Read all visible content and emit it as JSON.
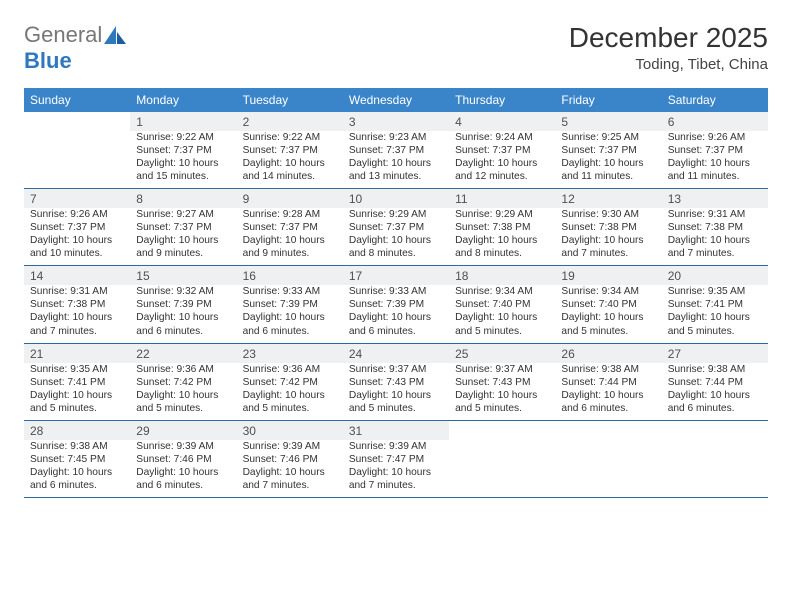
{
  "brand": {
    "name_a": "General",
    "name_b": "Blue",
    "gray": "#777777",
    "blue": "#2f78bd"
  },
  "title": "December 2025",
  "location": "Toding, Tibet, China",
  "colors": {
    "header_row_bg": "#3a85c9",
    "daynum_bg": "#eef0f2",
    "row_border": "#2b6aa3"
  },
  "weekdays": [
    "Sunday",
    "Monday",
    "Tuesday",
    "Wednesday",
    "Thursday",
    "Friday",
    "Saturday"
  ],
  "start_offset": 1,
  "days": [
    {
      "n": 1,
      "sr": "9:22 AM",
      "ss": "7:37 PM",
      "dl": "10 hours and 15 minutes."
    },
    {
      "n": 2,
      "sr": "9:22 AM",
      "ss": "7:37 PM",
      "dl": "10 hours and 14 minutes."
    },
    {
      "n": 3,
      "sr": "9:23 AM",
      "ss": "7:37 PM",
      "dl": "10 hours and 13 minutes."
    },
    {
      "n": 4,
      "sr": "9:24 AM",
      "ss": "7:37 PM",
      "dl": "10 hours and 12 minutes."
    },
    {
      "n": 5,
      "sr": "9:25 AM",
      "ss": "7:37 PM",
      "dl": "10 hours and 11 minutes."
    },
    {
      "n": 6,
      "sr": "9:26 AM",
      "ss": "7:37 PM",
      "dl": "10 hours and 11 minutes."
    },
    {
      "n": 7,
      "sr": "9:26 AM",
      "ss": "7:37 PM",
      "dl": "10 hours and 10 minutes."
    },
    {
      "n": 8,
      "sr": "9:27 AM",
      "ss": "7:37 PM",
      "dl": "10 hours and 9 minutes."
    },
    {
      "n": 9,
      "sr": "9:28 AM",
      "ss": "7:37 PM",
      "dl": "10 hours and 9 minutes."
    },
    {
      "n": 10,
      "sr": "9:29 AM",
      "ss": "7:37 PM",
      "dl": "10 hours and 8 minutes."
    },
    {
      "n": 11,
      "sr": "9:29 AM",
      "ss": "7:38 PM",
      "dl": "10 hours and 8 minutes."
    },
    {
      "n": 12,
      "sr": "9:30 AM",
      "ss": "7:38 PM",
      "dl": "10 hours and 7 minutes."
    },
    {
      "n": 13,
      "sr": "9:31 AM",
      "ss": "7:38 PM",
      "dl": "10 hours and 7 minutes."
    },
    {
      "n": 14,
      "sr": "9:31 AM",
      "ss": "7:38 PM",
      "dl": "10 hours and 7 minutes."
    },
    {
      "n": 15,
      "sr": "9:32 AM",
      "ss": "7:39 PM",
      "dl": "10 hours and 6 minutes."
    },
    {
      "n": 16,
      "sr": "9:33 AM",
      "ss": "7:39 PM",
      "dl": "10 hours and 6 minutes."
    },
    {
      "n": 17,
      "sr": "9:33 AM",
      "ss": "7:39 PM",
      "dl": "10 hours and 6 minutes."
    },
    {
      "n": 18,
      "sr": "9:34 AM",
      "ss": "7:40 PM",
      "dl": "10 hours and 5 minutes."
    },
    {
      "n": 19,
      "sr": "9:34 AM",
      "ss": "7:40 PM",
      "dl": "10 hours and 5 minutes."
    },
    {
      "n": 20,
      "sr": "9:35 AM",
      "ss": "7:41 PM",
      "dl": "10 hours and 5 minutes."
    },
    {
      "n": 21,
      "sr": "9:35 AM",
      "ss": "7:41 PM",
      "dl": "10 hours and 5 minutes."
    },
    {
      "n": 22,
      "sr": "9:36 AM",
      "ss": "7:42 PM",
      "dl": "10 hours and 5 minutes."
    },
    {
      "n": 23,
      "sr": "9:36 AM",
      "ss": "7:42 PM",
      "dl": "10 hours and 5 minutes."
    },
    {
      "n": 24,
      "sr": "9:37 AM",
      "ss": "7:43 PM",
      "dl": "10 hours and 5 minutes."
    },
    {
      "n": 25,
      "sr": "9:37 AM",
      "ss": "7:43 PM",
      "dl": "10 hours and 5 minutes."
    },
    {
      "n": 26,
      "sr": "9:38 AM",
      "ss": "7:44 PM",
      "dl": "10 hours and 6 minutes."
    },
    {
      "n": 27,
      "sr": "9:38 AM",
      "ss": "7:44 PM",
      "dl": "10 hours and 6 minutes."
    },
    {
      "n": 28,
      "sr": "9:38 AM",
      "ss": "7:45 PM",
      "dl": "10 hours and 6 minutes."
    },
    {
      "n": 29,
      "sr": "9:39 AM",
      "ss": "7:46 PM",
      "dl": "10 hours and 6 minutes."
    },
    {
      "n": 30,
      "sr": "9:39 AM",
      "ss": "7:46 PM",
      "dl": "10 hours and 7 minutes."
    },
    {
      "n": 31,
      "sr": "9:39 AM",
      "ss": "7:47 PM",
      "dl": "10 hours and 7 minutes."
    }
  ],
  "labels": {
    "sunrise": "Sunrise:",
    "sunset": "Sunset:",
    "daylight": "Daylight:"
  }
}
